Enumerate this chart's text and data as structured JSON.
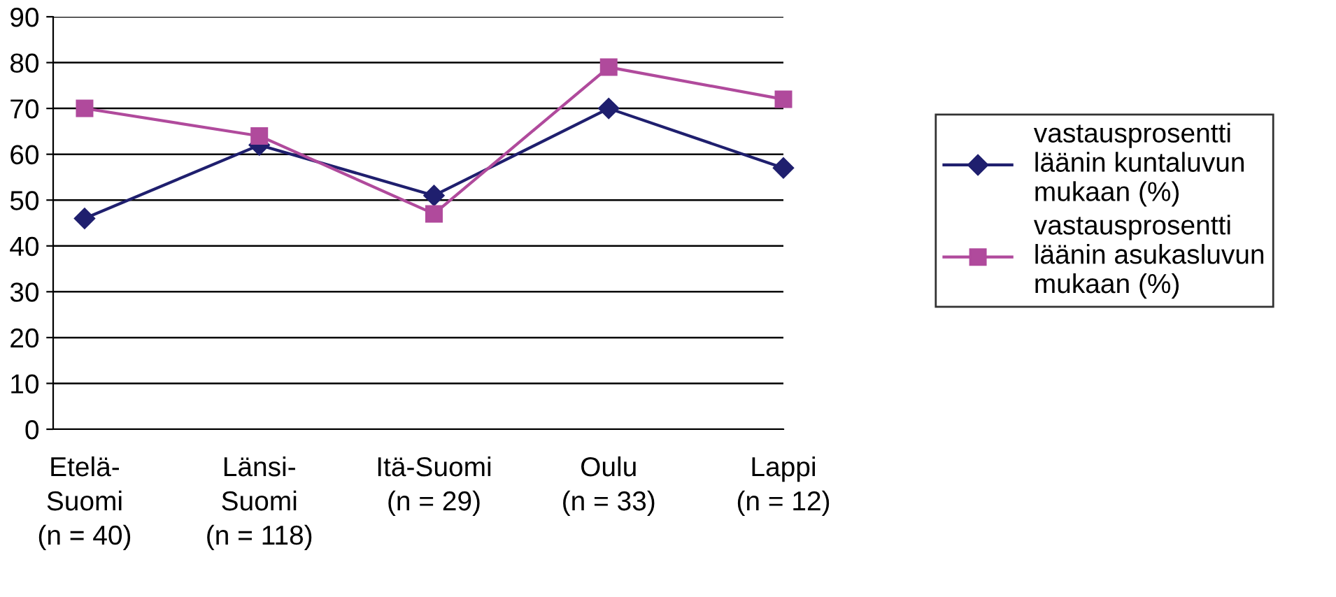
{
  "chart_data": {
    "type": "line",
    "categories": [
      "Etelä-\nSuomi\n(n = 40)",
      "Länsi-\nSuomi\n(n = 118)",
      "Itä-Suomi\n(n = 29)",
      "Oulu\n(n = 33)",
      "Lappi\n(n = 12)"
    ],
    "series": [
      {
        "name": "vastausprosentti\nläänin kuntaluvun\nmukaan (%)",
        "color": "#1f1f6e",
        "marker": "diamond",
        "values": [
          46,
          62,
          51,
          70,
          57
        ]
      },
      {
        "name": "vastausprosentti\nläänin asukasluvun\nmukaan (%)",
        "color": "#b04a9c",
        "marker": "square",
        "values": [
          70,
          64,
          47,
          79,
          72
        ]
      }
    ],
    "ylim": [
      0,
      90
    ],
    "yticks": [
      0,
      10,
      20,
      30,
      40,
      50,
      60,
      70,
      80,
      90
    ],
    "grid": "y",
    "legend": "right"
  }
}
